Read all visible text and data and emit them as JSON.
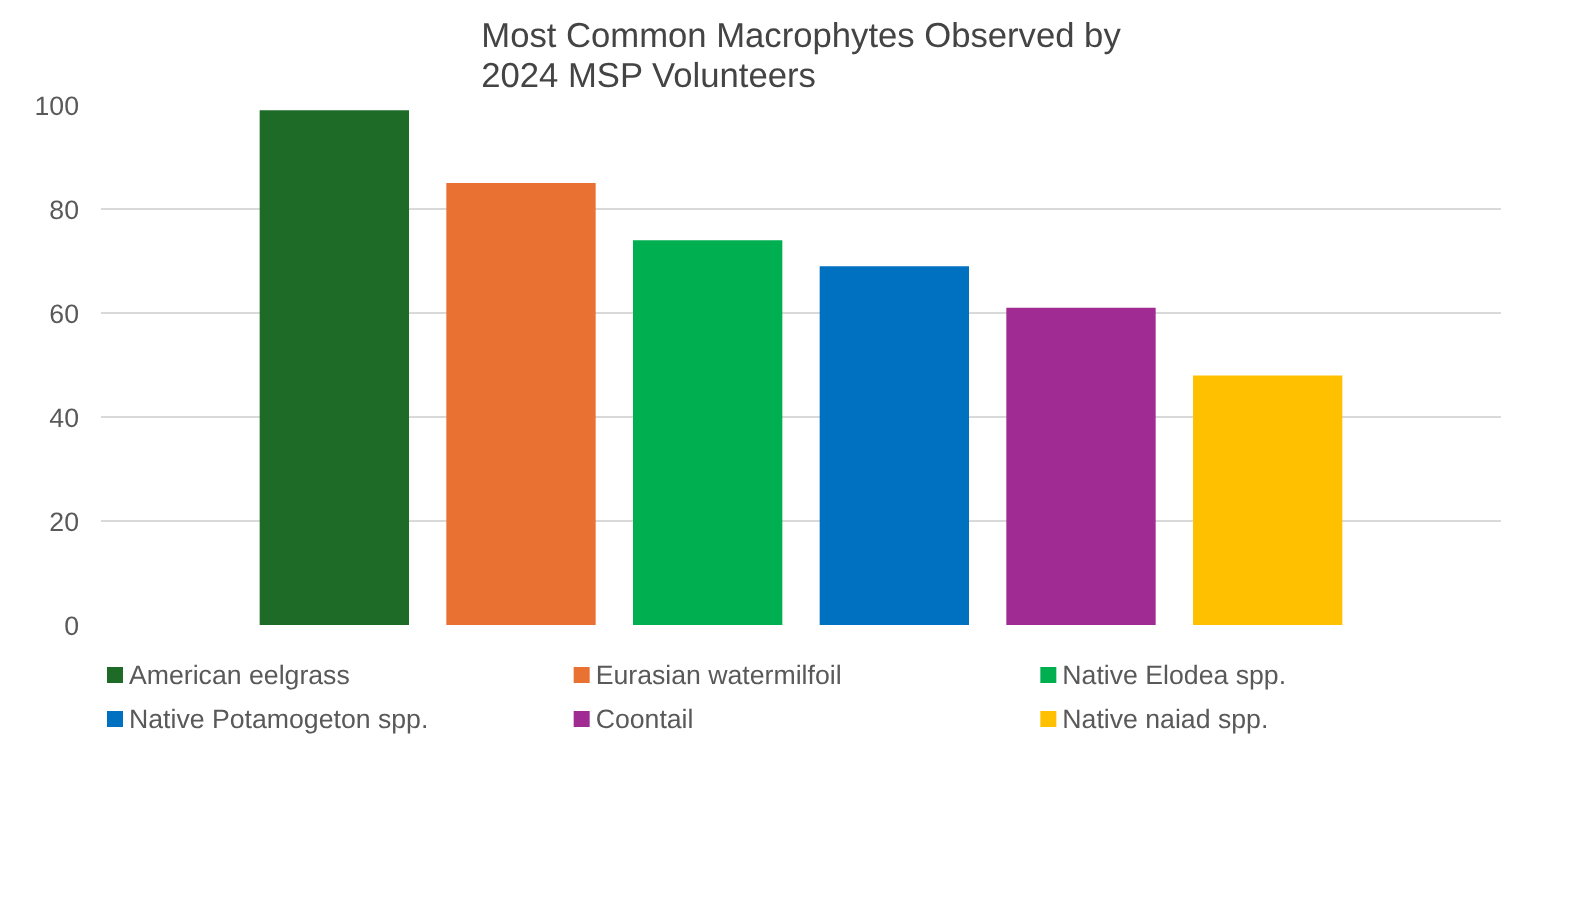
{
  "chart_data": {
    "type": "bar",
    "title": "Most Common Macrophytes Observed by 2024 MSP Volunteers",
    "categories": [
      null
    ],
    "series": [
      {
        "name": "American eelgrass",
        "color": "#1e6b28",
        "values": [
          99
        ]
      },
      {
        "name": "Eurasian watermilfoil",
        "color": "#e97132",
        "values": [
          85
        ]
      },
      {
        "name": "Native Elodea spp.",
        "color": "#00b050",
        "values": [
          74
        ]
      },
      {
        "name": "Native Potamogeton spp.",
        "color": "#0070c0",
        "values": [
          69
        ]
      },
      {
        "name": "Coontail",
        "color": "#a02b93",
        "values": [
          61
        ]
      },
      {
        "name": "Native naiad spp.",
        "color": "#ffc000",
        "values": [
          48
        ]
      }
    ],
    "ylim": [
      0,
      100
    ],
    "yticks": [
      0,
      20,
      40,
      60,
      80,
      100
    ],
    "grid": "y",
    "legend": "bottom"
  }
}
